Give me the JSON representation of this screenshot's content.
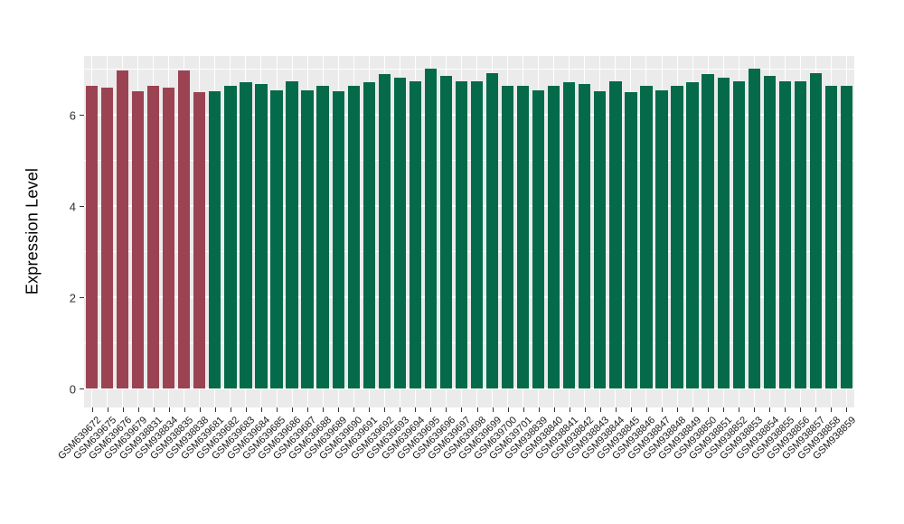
{
  "chart_data": {
    "type": "bar",
    "title": "",
    "xlabel": "",
    "ylabel": "Expression Level",
    "yticks": [
      0,
      2,
      4,
      6
    ],
    "ylim": [
      0,
      7.3
    ],
    "grid": true,
    "legend": "none",
    "panel_bg": "#EBEBEB",
    "grid_color": "#FFFFFF",
    "group_colors": {
      "group1": "#9B4352",
      "group2": "#046A4A"
    },
    "categories": [
      "GSM639672",
      "GSM639675",
      "GSM639676",
      "GSM639679",
      "GSM938831",
      "GSM938834",
      "GSM938835",
      "GSM938838",
      "GSM639681",
      "GSM639682",
      "GSM639683",
      "GSM639684",
      "GSM639685",
      "GSM639686",
      "GSM639687",
      "GSM639688",
      "GSM639689",
      "GSM639690",
      "GSM639691",
      "GSM639692",
      "GSM639693",
      "GSM639694",
      "GSM639695",
      "GSM639696",
      "GSM639697",
      "GSM639698",
      "GSM639699",
      "GSM639700",
      "GSM639701",
      "GSM938839",
      "GSM938840",
      "GSM938841",
      "GSM938842",
      "GSM938843",
      "GSM938844",
      "GSM938845",
      "GSM938846",
      "GSM938847",
      "GSM938848",
      "GSM938849",
      "GSM938850",
      "GSM938851",
      "GSM938852",
      "GSM938853",
      "GSM938854",
      "GSM938855",
      "GSM938856",
      "GSM938857",
      "GSM938858",
      "GSM938859"
    ],
    "groups": [
      "group1",
      "group1",
      "group1",
      "group1",
      "group1",
      "group1",
      "group1",
      "group1",
      "group2",
      "group2",
      "group2",
      "group2",
      "group2",
      "group2",
      "group2",
      "group2",
      "group2",
      "group2",
      "group2",
      "group2",
      "group2",
      "group2",
      "group2",
      "group2",
      "group2",
      "group2",
      "group2",
      "group2",
      "group2",
      "group2",
      "group2",
      "group2",
      "group2",
      "group2",
      "group2",
      "group2",
      "group2",
      "group2",
      "group2",
      "group2",
      "group2",
      "group2",
      "group2",
      "group2",
      "group2",
      "group2",
      "group2",
      "group2",
      "group2",
      "group2"
    ],
    "values": [
      6.63,
      6.59,
      6.97,
      6.51,
      6.63,
      6.59,
      6.97,
      6.49,
      6.52,
      6.64,
      6.71,
      6.68,
      6.53,
      6.73,
      6.54,
      6.64,
      6.52,
      6.64,
      6.71,
      6.9,
      6.81,
      6.74,
      7.02,
      6.85,
      6.73,
      6.73,
      6.92,
      6.63,
      6.64,
      6.53,
      6.64,
      6.71,
      6.68,
      6.52,
      6.73,
      6.5,
      6.64,
      6.53,
      6.64,
      6.71,
      6.9,
      6.81,
      6.74,
      7.02,
      6.85,
      6.73,
      6.73,
      6.92,
      6.63,
      6.64
    ]
  }
}
